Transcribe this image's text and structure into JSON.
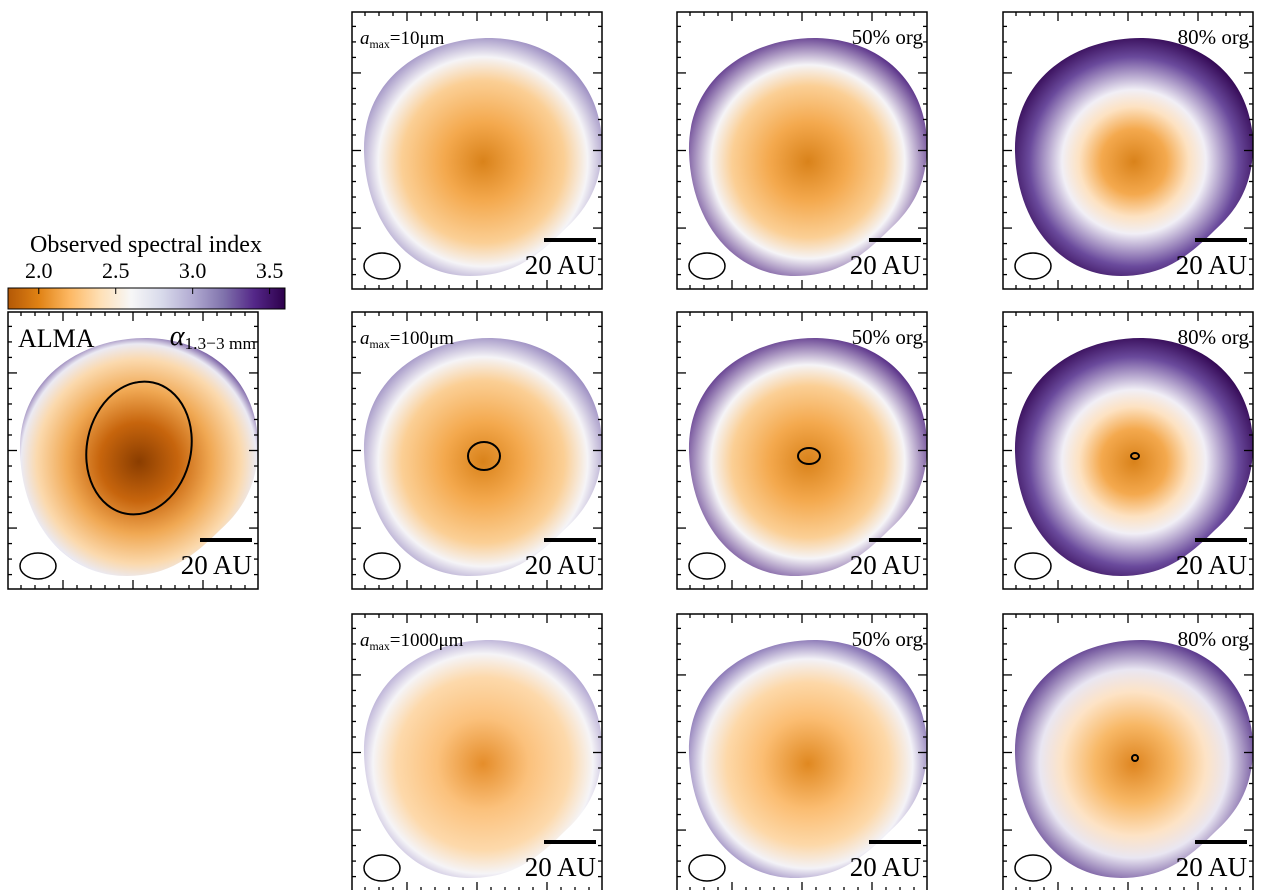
{
  "colorbar": {
    "label": "Observed spectral index",
    "clim": [
      1.8,
      3.6
    ],
    "ticks": [
      {
        "value": 2,
        "label": "2.0"
      },
      {
        "value": 2.5,
        "label": "2.5"
      },
      {
        "value": 3,
        "label": "3.0"
      },
      {
        "value": 3.5,
        "label": "3.5"
      }
    ],
    "colors": [
      "#b35806",
      "#e08214",
      "#fdb863",
      "#fee0b6",
      "#f7f7f7",
      "#d8daeb",
      "#b2abd2",
      "#8073ac",
      "#542788",
      "#2d004b"
    ]
  },
  "alma": {
    "title": "ALMA",
    "symbol": "α",
    "sub": "1.3−3 mm",
    "scale": "20 AU"
  },
  "models": {
    "rows": [
      {
        "symbol": "a",
        "sub": "max",
        "text": "=10μm"
      },
      {
        "symbol": "a",
        "sub": "max",
        "text": "=100μm"
      },
      {
        "symbol": "a",
        "sub": "max",
        "text": "=1000μm"
      }
    ],
    "org_labels": [
      "50% org",
      "80% org"
    ],
    "scale": "20 AU"
  }
}
